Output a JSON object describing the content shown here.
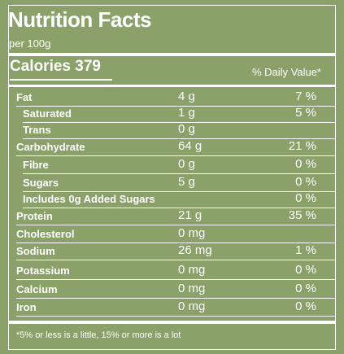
{
  "title": "Nutrition Facts",
  "serving": "per 100g",
  "calories_label": "Calories 379",
  "daily_value_header": "% Daily Value*",
  "rows": [
    {
      "name": "Fat",
      "amount": "4 g",
      "dv": "7 %",
      "sub": false
    },
    {
      "name": "Saturated",
      "amount": "1 g",
      "dv": "5 %",
      "sub": true
    },
    {
      "name": "Trans",
      "amount": "0 g",
      "dv": "",
      "sub": true
    },
    {
      "name": "Carbohydrate",
      "amount": "64 g",
      "dv": "21 %",
      "sub": false
    },
    {
      "name": "Fibre",
      "amount": "0 g",
      "dv": "0 %",
      "sub": true
    },
    {
      "name": "Sugars",
      "amount": "5 g",
      "dv": "0 %",
      "sub": true
    },
    {
      "name": "Includes 0g Added Sugars",
      "amount": "",
      "dv": "0 %",
      "sub": true
    },
    {
      "name": "Protein",
      "amount": "21 g",
      "dv": "35 %",
      "sub": false
    },
    {
      "name": "Cholesterol",
      "amount": "0 mg",
      "dv": "",
      "sub": false
    },
    {
      "name": "Sodium",
      "amount": "26 mg",
      "dv": "1 %",
      "sub": false
    },
    {
      "name": "Potassium",
      "amount": "0 mg",
      "dv": "0 %",
      "sub": false
    },
    {
      "name": "Calcium",
      "amount": "0 mg",
      "dv": "0 %",
      "sub": false
    },
    {
      "name": "Iron",
      "amount": "0 mg",
      "dv": "0 %",
      "sub": false
    }
  ],
  "footnote": "*5% or less is a little, 15% or more is a lot",
  "colors": {
    "background": "#8aa16a",
    "text": "#ffffff"
  }
}
